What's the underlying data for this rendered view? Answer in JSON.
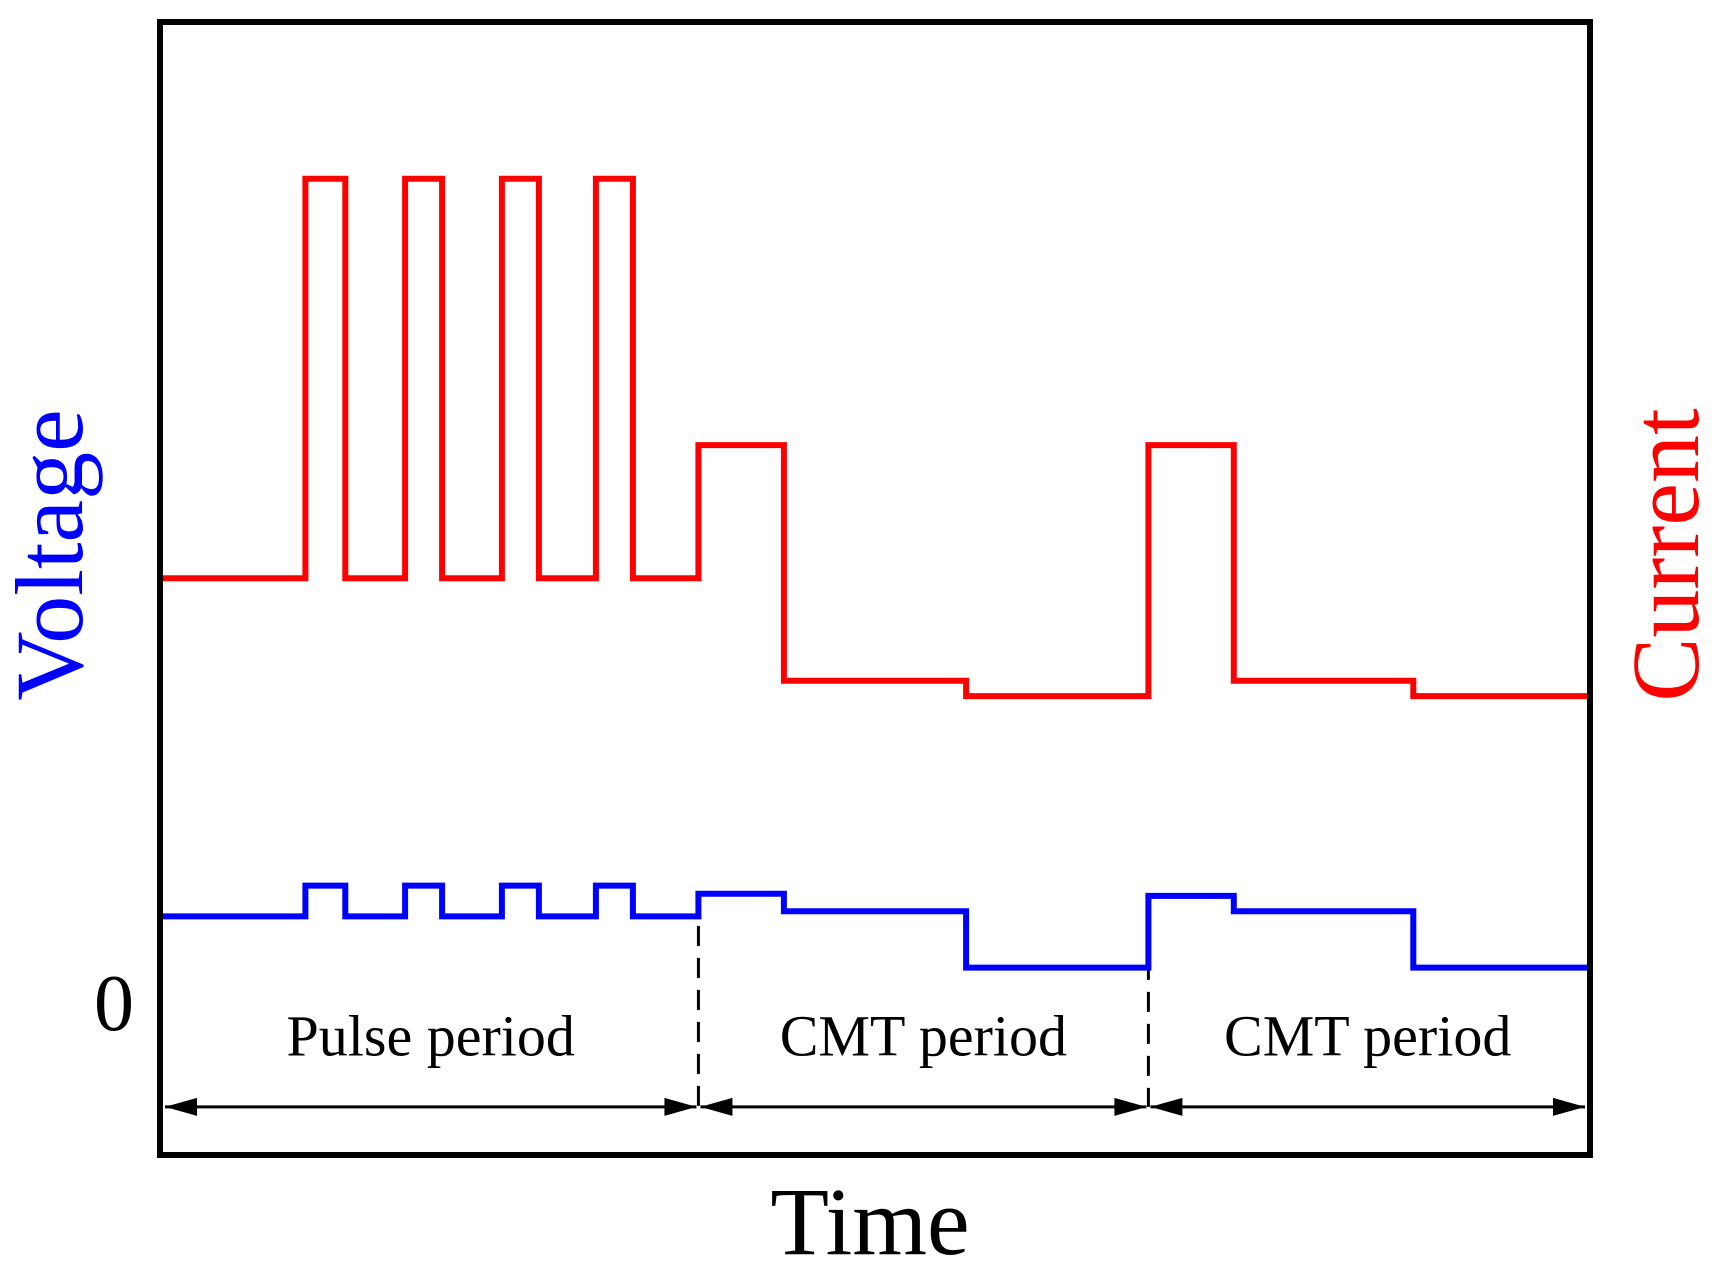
{
  "chart_data": {
    "type": "line",
    "style": "step",
    "xlabel": "Time",
    "ylabel_left": "Voltage",
    "ylabel_right": "Current",
    "zero_label": "0",
    "xlim": [
      0,
      100
    ],
    "ylim": [
      -10,
      100
    ],
    "series": [
      {
        "name": "Current",
        "axis": "right",
        "color": "#ff0000",
        "x": [
          0,
          10,
          10,
          12.8,
          12.8,
          17,
          17,
          19.6,
          19.6,
          23.8,
          23.8,
          26.4,
          26.4,
          30.4,
          30.4,
          33,
          33,
          37.6,
          37.6,
          43.6,
          43.6,
          56.4,
          56.4,
          69.2,
          69.2,
          75.2,
          75.2,
          87.8,
          87.8,
          100
        ],
        "values": [
          46,
          46,
          85,
          85,
          46,
          46,
          85,
          85,
          46,
          46,
          85,
          85,
          46,
          46,
          85,
          85,
          46,
          46,
          59,
          59,
          36,
          36,
          34.5,
          34.5,
          59,
          59,
          36,
          36,
          34.5,
          34.5
        ]
      },
      {
        "name": "Voltage",
        "axis": "left",
        "color": "#0000ff",
        "x": [
          0,
          10,
          10,
          12.8,
          12.8,
          17,
          17,
          19.6,
          19.6,
          23.8,
          23.8,
          26.4,
          26.4,
          30.4,
          30.4,
          33,
          33,
          37.6,
          37.6,
          43.6,
          43.6,
          56.4,
          56.4,
          69.2,
          69.2,
          75.2,
          75.2,
          87.8,
          87.8,
          100
        ],
        "values": [
          13,
          13,
          16,
          16,
          13,
          13,
          16,
          16,
          13,
          13,
          16,
          16,
          13,
          13,
          16,
          16,
          13,
          13,
          15.2,
          15.2,
          13.5,
          13.5,
          8,
          8,
          15,
          15,
          13.5,
          13.5,
          8,
          8
        ]
      }
    ],
    "period_boundaries": [
      37.6,
      69.2
    ],
    "periods": [
      {
        "label": "Pulse period",
        "start": 0,
        "end": 37.6
      },
      {
        "label": "CMT period",
        "start": 37.6,
        "end": 69.2
      },
      {
        "label": "CMT period",
        "start": 69.2,
        "end": 100
      }
    ]
  }
}
